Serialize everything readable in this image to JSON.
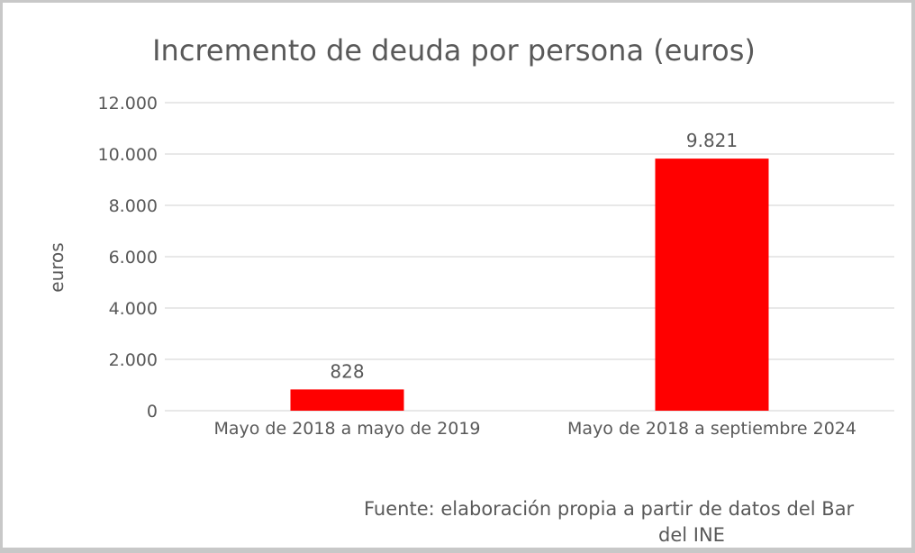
{
  "chart_data": {
    "type": "bar",
    "title": "Incremento de deuda por persona (euros)",
    "xlabel": "",
    "ylabel": "euros",
    "categories": [
      "Mayo de 2018 a mayo de 2019",
      "Mayo de 2018 a septiembre 2024"
    ],
    "values": [
      828,
      9821
    ],
    "data_labels": [
      "828",
      "9.821"
    ],
    "ylim": [
      0,
      12000
    ],
    "yticks": [
      0,
      2000,
      4000,
      6000,
      8000,
      10000,
      12000
    ],
    "ytick_labels": [
      "0",
      "2.000",
      "4.000",
      "6.000",
      "8.000",
      "10.000",
      "12.000"
    ],
    "grid": true,
    "legend": "none",
    "bar_color": "#ff0000",
    "source_note": [
      "Fuente: elaboración propia a partir de datos del Bar",
      "del INE"
    ]
  }
}
